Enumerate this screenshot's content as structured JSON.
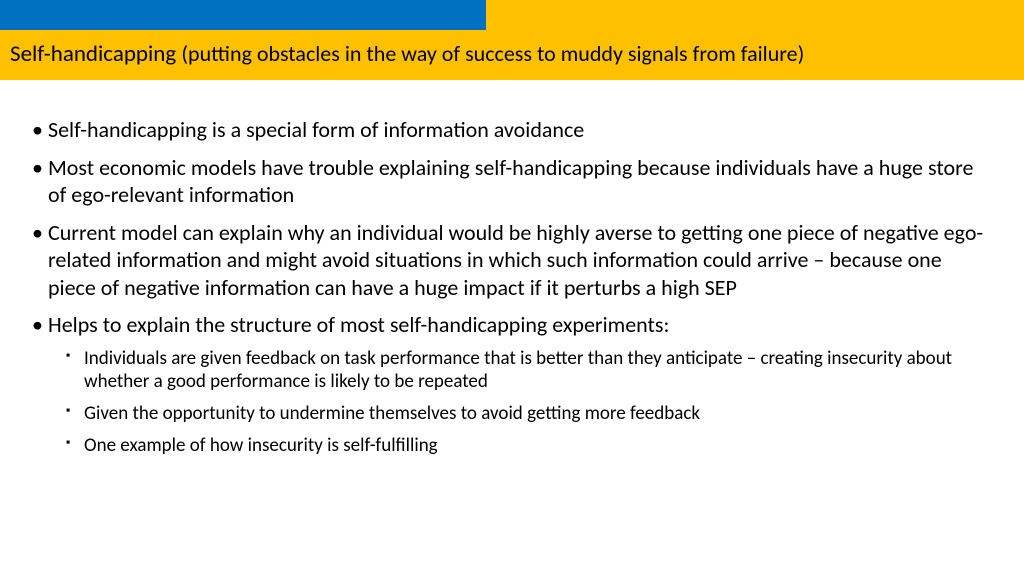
{
  "colors": {
    "blue": "#0070c0",
    "yellow": "#ffc000",
    "text": "#000000",
    "background": "#ffffff"
  },
  "layout": {
    "topbar_blue_width": 486,
    "topbar_yellow_width": 538,
    "topbar_height": 30
  },
  "title": {
    "main": "Self-handicapping ",
    "sub": "(putting obstacles in the way of success to muddy signals from failure)"
  },
  "bullets": [
    {
      "text": "Self-handicapping is a special form of information avoidance"
    },
    {
      "text": "Most economic models have trouble explaining self-handicapping because individuals have a huge store of ego-relevant information"
    },
    {
      "text": "Current model can explain why an individual would be highly averse to getting one piece of negative ego-related information and might avoid situations in which such information could arrive – because one piece of negative information can have a huge impact if it perturbs a high SEP"
    },
    {
      "text": "Helps to explain the structure of most self-handicapping experiments:",
      "sub": [
        "Individuals are given feedback on task performance that is better than they anticipate – creating insecurity about whether a good performance is likely to be repeated",
        "Given the opportunity to undermine themselves to avoid getting more feedback",
        "One example of how insecurity is self-fulfilling"
      ]
    }
  ]
}
